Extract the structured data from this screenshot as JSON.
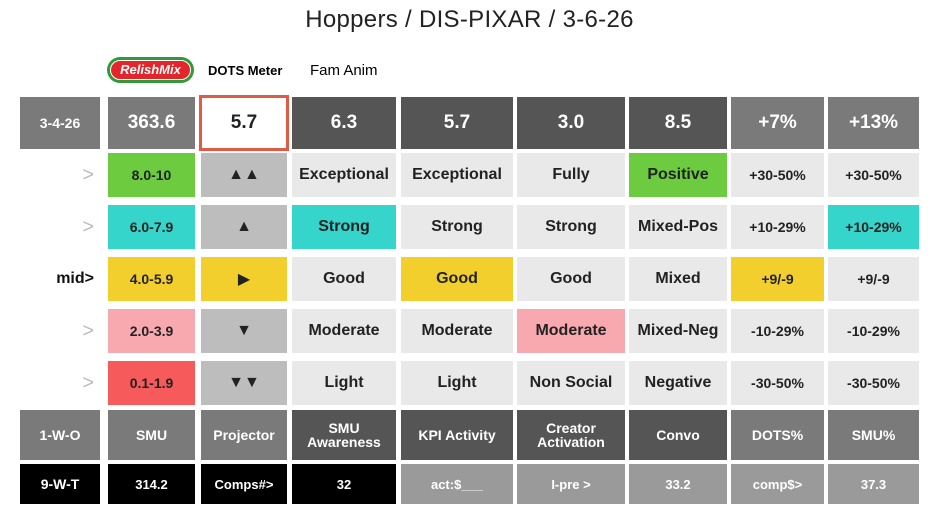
{
  "title": "Hoppers / DIS-PIXAR / 3-6-26",
  "logo_text": "RelishMix",
  "dots_meter_label": "DOTS Meter",
  "fam_label": "Fam Anim",
  "top_row": {
    "date": "3-4-26",
    "smu": "363.6",
    "projector": "5.7",
    "smu_awareness": "6.3",
    "kpi_activity": "5.7",
    "creator_activation": "3.0",
    "convo": "8.5",
    "dots_pct": "+7%",
    "smu_pct": "+13%"
  },
  "rows": [
    {
      "label": ">",
      "range": "8.0-10",
      "arrow": "▲▲",
      "c1": "Exceptional",
      "c2": "Exceptional",
      "c3": "Fully",
      "c4": "Positive",
      "c5": "+30-50%",
      "c6": "+30-50%"
    },
    {
      "label": ">",
      "range": "6.0-7.9",
      "arrow": "▲",
      "c1": "Strong",
      "c2": "Strong",
      "c3": "Strong",
      "c4": "Mixed-Pos",
      "c5": "+10-29%",
      "c6": "+10-29%"
    },
    {
      "label": "mid>",
      "range": "4.0-5.9",
      "arrow": "▶",
      "c1": "Good",
      "c2": "Good",
      "c3": "Good",
      "c4": "Mixed",
      "c5": "+9/-9",
      "c6": "+9/-9"
    },
    {
      "label": ">",
      "range": "2.0-3.9",
      "arrow": "▼",
      "c1": "Moderate",
      "c2": "Moderate",
      "c3": "Moderate",
      "c4": "Mixed-Neg",
      "c5": "-10-29%",
      "c6": "-10-29%"
    },
    {
      "label": ">",
      "range": "0.1-1.9",
      "arrow": "▼▼",
      "c1": "Light",
      "c2": "Light",
      "c3": "Non Social",
      "c4": "Negative",
      "c5": "-30-50%",
      "c6": "-30-50%"
    }
  ],
  "header_row": [
    "1-W-O",
    "SMU",
    "Projector",
    "SMU Awareness",
    "KPI Activity",
    "Creator Activation",
    "Convo",
    "DOTS%",
    "SMU%"
  ],
  "bottom_row": [
    "9-W-T",
    "314.2",
    "Comps#>",
    "32",
    "act:$___",
    "I-pre >",
    "33.2",
    "comp$>",
    "37.3"
  ],
  "colors": {
    "green": "#6ccb3f",
    "teal": "#35d5cc",
    "yellow": "#f2cf2c",
    "pink": "#f8a9b0",
    "red": "#f65a5a",
    "projector_border": "#e15a46"
  }
}
